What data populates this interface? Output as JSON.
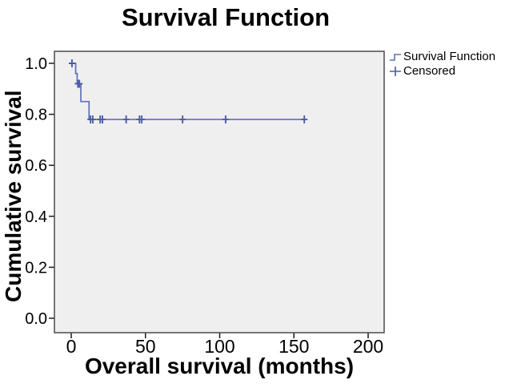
{
  "title": "Survival Function",
  "x_axis": {
    "label": "Overall survival (months)"
  },
  "y_axis": {
    "label": "Cumulative survival"
  },
  "legend": {
    "items": [
      {
        "label": "Survival Function",
        "symbol": "step-line"
      },
      {
        "label": "Censored",
        "symbol": "plus"
      }
    ]
  },
  "colors": {
    "line": "#6070B5",
    "censor": "#4A5CA6",
    "plot_bg": "#F0EFF0",
    "border": "#404040",
    "tick": "#1a1a1a",
    "text": "#000000"
  },
  "chart_data": {
    "type": "line",
    "subtype": "kaplan-meier-step",
    "title": "Survival Function",
    "xlabel": "Overall survival (months)",
    "ylabel": "Cumulative survival",
    "x_ticks": [
      0,
      50,
      100,
      150,
      200
    ],
    "y_ticks": [
      1.0,
      0.8,
      0.6,
      0.4,
      0.2,
      0.0
    ],
    "xlim": [
      -11,
      211
    ],
    "ylim": [
      -0.057,
      1.047
    ],
    "grid": false,
    "legend_position": "outside-top-right",
    "series": [
      {
        "name": "Survival Function",
        "steps": [
          [
            0,
            1.0
          ],
          [
            3,
            0.96
          ],
          [
            4,
            0.92
          ],
          [
            6.5,
            0.85
          ],
          [
            12,
            0.78
          ],
          [
            158,
            0.78
          ]
        ]
      }
    ],
    "censored_points": [
      [
        0.5,
        1.0
      ],
      [
        4.5,
        0.92
      ],
      [
        5.5,
        0.92
      ],
      [
        13,
        0.78
      ],
      [
        14.5,
        0.78
      ],
      [
        19.5,
        0.78
      ],
      [
        21,
        0.78
      ],
      [
        37,
        0.78
      ],
      [
        46,
        0.78
      ],
      [
        47.5,
        0.78
      ],
      [
        75,
        0.78
      ],
      [
        104,
        0.78
      ],
      [
        157,
        0.78
      ]
    ]
  }
}
